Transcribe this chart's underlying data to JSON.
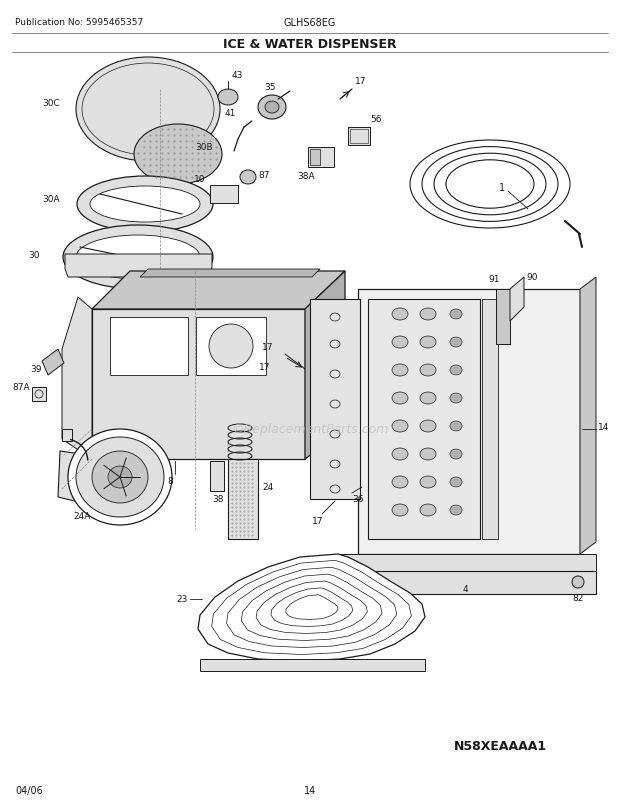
{
  "pub_no": "Publication No: 5995465357",
  "model": "GLHS68EG",
  "title": "ICE & WATER DISPENSER",
  "diagram_id": "N58XEAAAA1",
  "date": "04/06",
  "page": "14",
  "bg": "#ffffff",
  "lc": "#1a1a1a",
  "tc": "#1a1a1a",
  "wm": "©ReplacementParts.com",
  "wm_color": "#bbbbbb",
  "sh_light": "#e0e0e0",
  "sh_mid": "#c8c8c8",
  "sh_dot": "#b0b0b0"
}
